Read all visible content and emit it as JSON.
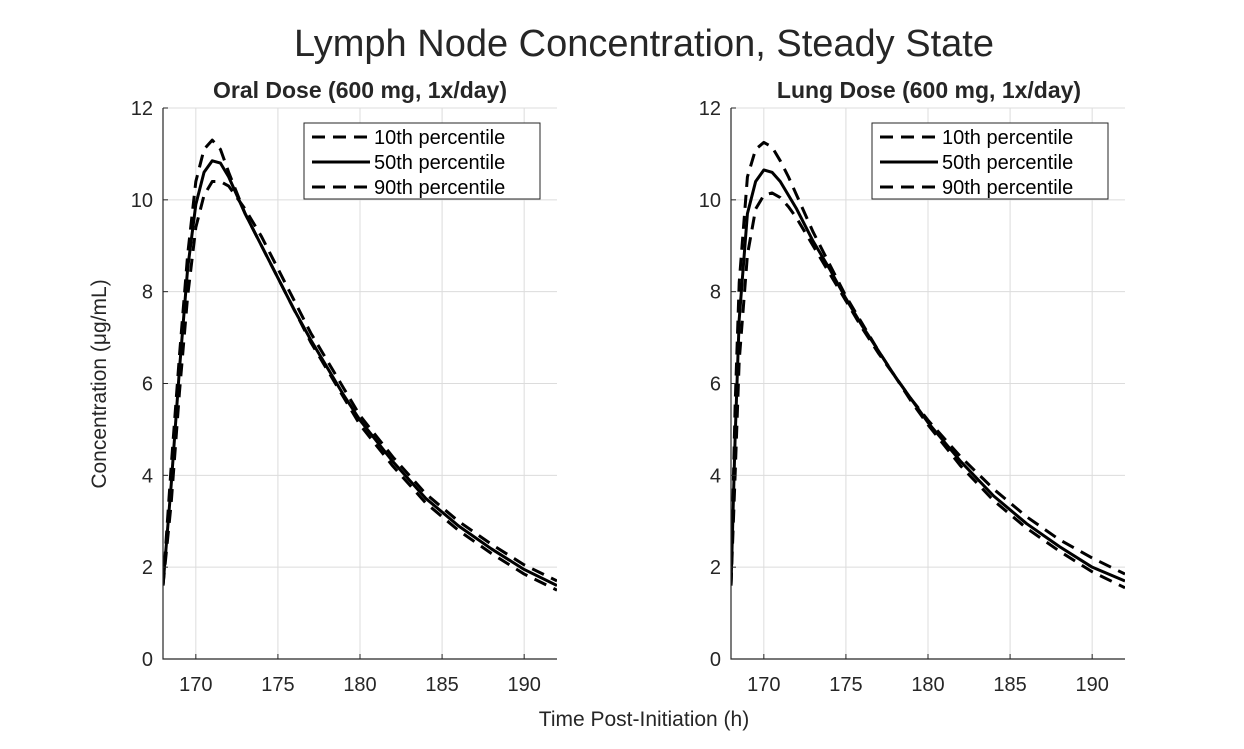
{
  "figure": {
    "title": "Lymph Node Concentration, Steady State",
    "ylabel": "Concentration  (μg/mL)",
    "xlabel": "Time Post-Initiation (h)"
  },
  "chart_data": [
    {
      "type": "line",
      "title": "Oral Dose (600 mg, 1x/day)",
      "xlim": [
        168,
        192
      ],
      "ylim": [
        0,
        12
      ],
      "xticks": [
        170,
        175,
        180,
        185,
        190
      ],
      "yticks": [
        0,
        2,
        4,
        6,
        8,
        10,
        12
      ],
      "grid": true,
      "legend_position": "top-right",
      "series": [
        {
          "name": "10th  percentile",
          "style": "dashed",
          "x": [
            168,
            168.5,
            169,
            169.5,
            170,
            170.5,
            171,
            171.5,
            172,
            173,
            174,
            175,
            176,
            177,
            178,
            179,
            180,
            182,
            184,
            186,
            188,
            190,
            192
          ],
          "y": [
            1.6,
            4.2,
            6.6,
            8.8,
            10.4,
            11.1,
            11.3,
            11.1,
            10.6,
            9.7,
            9.0,
            8.3,
            7.6,
            6.9,
            6.3,
            5.7,
            5.1,
            4.2,
            3.4,
            2.8,
            2.3,
            1.85,
            1.5
          ]
        },
        {
          "name": "50th  percentile",
          "style": "solid",
          "x": [
            168,
            168.5,
            169,
            169.5,
            170,
            170.5,
            171,
            171.5,
            172,
            173,
            174,
            175,
            176,
            177,
            178,
            179,
            180,
            182,
            184,
            186,
            188,
            190,
            192
          ],
          "y": [
            1.6,
            3.8,
            6.3,
            8.5,
            9.9,
            10.6,
            10.85,
            10.8,
            10.5,
            9.7,
            9.0,
            8.3,
            7.6,
            6.95,
            6.35,
            5.75,
            5.2,
            4.3,
            3.5,
            2.9,
            2.4,
            1.95,
            1.6
          ]
        },
        {
          "name": "90th  percentile",
          "style": "dashed",
          "x": [
            168,
            168.5,
            169,
            169.5,
            170,
            170.5,
            171,
            171.5,
            172,
            173,
            174,
            175,
            176,
            177,
            178,
            179,
            180,
            182,
            184,
            186,
            188,
            190,
            192
          ],
          "y": [
            1.6,
            3.4,
            5.8,
            7.9,
            9.4,
            10.1,
            10.4,
            10.4,
            10.3,
            9.8,
            9.2,
            8.5,
            7.8,
            7.1,
            6.5,
            5.9,
            5.3,
            4.4,
            3.6,
            3.0,
            2.5,
            2.05,
            1.7
          ]
        }
      ]
    },
    {
      "type": "line",
      "title": "Lung Dose (600 mg, 1x/day)",
      "xlim": [
        168,
        192
      ],
      "ylim": [
        0,
        12
      ],
      "xticks": [
        170,
        175,
        180,
        185,
        190
      ],
      "yticks": [
        0,
        2,
        4,
        6,
        8,
        10,
        12
      ],
      "grid": true,
      "legend_position": "top-right",
      "series": [
        {
          "name": "10th  percentile",
          "style": "dashed",
          "x": [
            168,
            168.25,
            168.5,
            169,
            169.5,
            170,
            170.5,
            171,
            171.5,
            172,
            173,
            174,
            175,
            176,
            177,
            178,
            179,
            180,
            182,
            184,
            186,
            188,
            190,
            192
          ],
          "y": [
            1.6,
            5.5,
            8.2,
            10.5,
            11.1,
            11.25,
            11.15,
            10.85,
            10.5,
            10.1,
            9.3,
            8.6,
            7.9,
            7.3,
            6.7,
            6.15,
            5.6,
            5.1,
            4.2,
            3.45,
            2.85,
            2.35,
            1.9,
            1.55
          ]
        },
        {
          "name": "50th  percentile",
          "style": "solid",
          "x": [
            168,
            168.25,
            168.5,
            169,
            169.5,
            170,
            170.5,
            171,
            171.5,
            172,
            173,
            174,
            175,
            176,
            177,
            178,
            179,
            180,
            182,
            184,
            186,
            188,
            190,
            192
          ],
          "y": [
            1.6,
            4.8,
            7.4,
            9.7,
            10.4,
            10.65,
            10.6,
            10.4,
            10.1,
            9.8,
            9.1,
            8.5,
            7.85,
            7.25,
            6.7,
            6.15,
            5.65,
            5.15,
            4.3,
            3.55,
            2.95,
            2.45,
            2.0,
            1.7
          ]
        },
        {
          "name": "90th  percentile",
          "style": "dashed",
          "x": [
            168,
            168.25,
            168.5,
            169,
            169.5,
            170,
            170.5,
            171,
            171.5,
            172,
            173,
            174,
            175,
            176,
            177,
            178,
            179,
            180,
            182,
            184,
            186,
            188,
            190,
            192
          ],
          "y": [
            1.6,
            4.0,
            6.5,
            8.8,
            9.8,
            10.1,
            10.15,
            10.05,
            9.85,
            9.6,
            9.0,
            8.4,
            7.8,
            7.2,
            6.65,
            6.15,
            5.65,
            5.2,
            4.4,
            3.7,
            3.1,
            2.6,
            2.2,
            1.85
          ]
        }
      ]
    }
  ]
}
